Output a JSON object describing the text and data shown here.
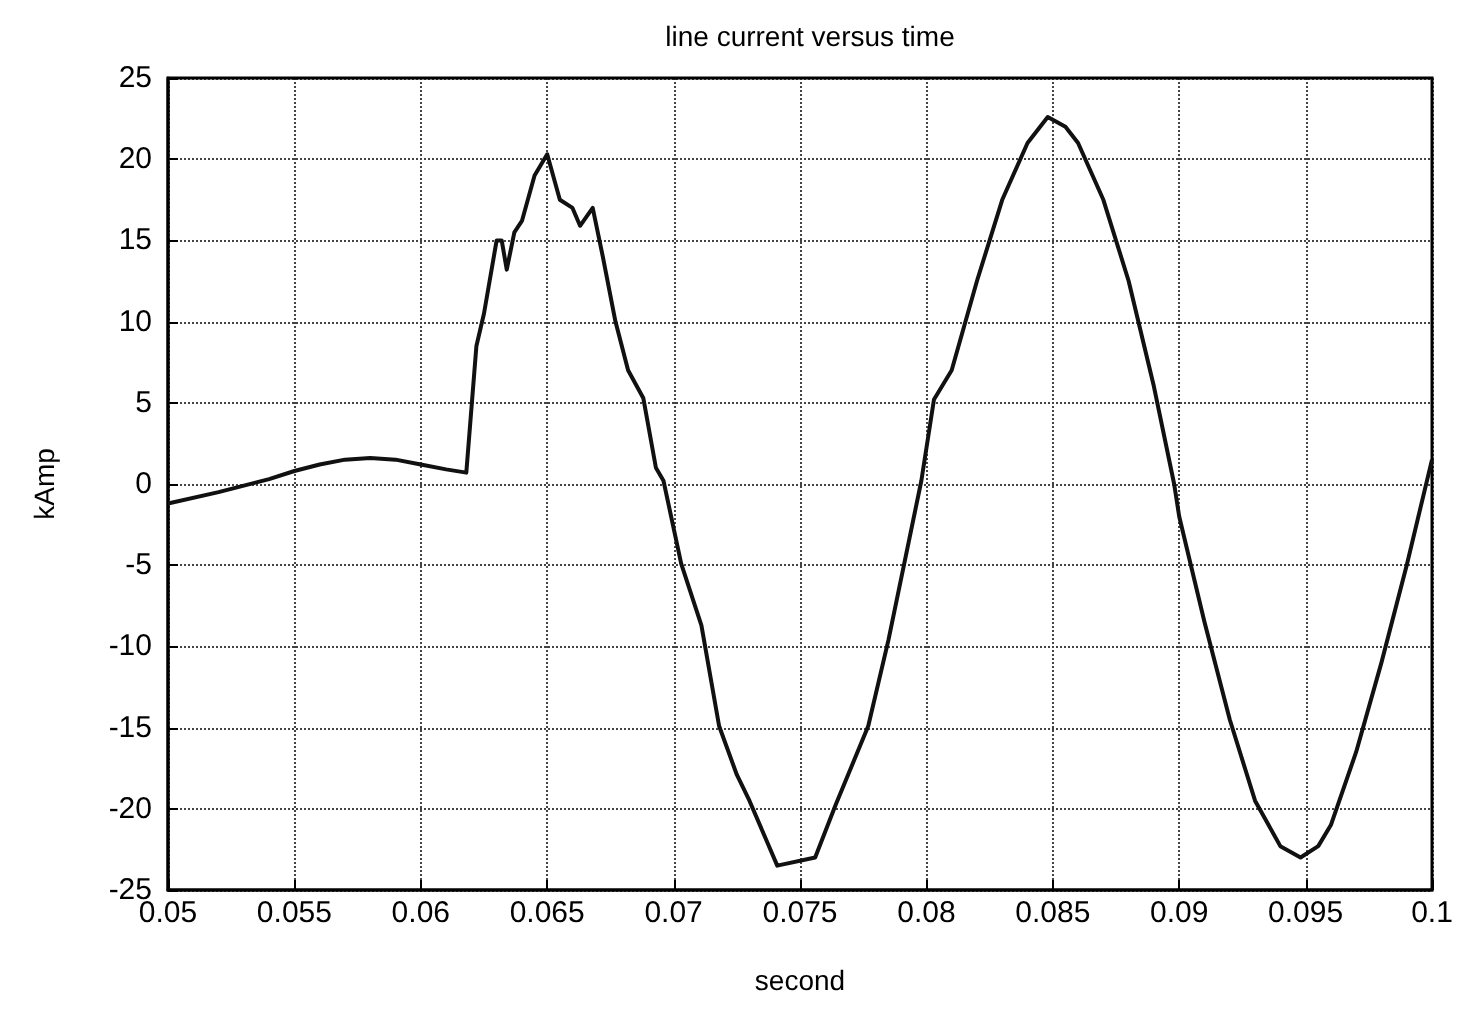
{
  "chart_data": {
    "type": "line",
    "title": "line current versus time",
    "xlabel": "second",
    "ylabel": "kAmp",
    "xlim": [
      0.05,
      0.1
    ],
    "xticks": [
      0.05,
      0.055,
      0.06,
      0.065,
      0.07,
      0.075,
      0.08,
      0.085,
      0.09,
      0.095,
      0.1
    ],
    "ylim": [
      -25,
      25
    ],
    "yticks": [
      -25,
      -20,
      -15,
      -10,
      -5,
      0,
      5,
      10,
      15,
      20,
      25
    ],
    "grid": true,
    "marker": "none",
    "line_style": "solid",
    "series": [
      {
        "color": "#111111",
        "x": [
          0.05,
          0.052,
          0.054,
          0.055,
          0.056,
          0.057,
          0.058,
          0.059,
          0.06,
          0.061,
          0.0618,
          0.0622,
          0.0625,
          0.063,
          0.0632,
          0.0634,
          0.0637,
          0.064,
          0.0645,
          0.065,
          0.0655,
          0.066,
          0.0663,
          0.0668,
          0.0672,
          0.0677,
          0.0682,
          0.0688,
          0.0693,
          0.0696,
          0.0703,
          0.0711,
          0.0718,
          0.0725,
          0.073,
          0.0741,
          0.0756,
          0.0764,
          0.0777,
          0.0785,
          0.0798,
          0.0803,
          0.081,
          0.082,
          0.083,
          0.084,
          0.0848,
          0.0855,
          0.086,
          0.087,
          0.088,
          0.089,
          0.0898,
          0.09,
          0.091,
          0.092,
          0.093,
          0.094,
          0.0948,
          0.0955,
          0.096,
          0.097,
          0.098,
          0.099,
          0.1
        ],
        "values": [
          -1.2,
          -0.5,
          0.3,
          0.8,
          1.2,
          1.5,
          1.6,
          1.5,
          1.2,
          0.9,
          0.7,
          8.5,
          10.5,
          15,
          15,
          13.2,
          15.5,
          16.2,
          19,
          20.3,
          17.5,
          17,
          15.9,
          17,
          14,
          10,
          7,
          5.3,
          1,
          0.2,
          -4.9,
          -8.7,
          -14.9,
          -17.9,
          -19.5,
          -23.5,
          -23,
          -19.8,
          -14.9,
          -9.6,
          0.2,
          5.2,
          7,
          12.5,
          17.5,
          21,
          22.6,
          22,
          21,
          17.5,
          12.5,
          6,
          0,
          -2,
          -8.5,
          -14.5,
          -19.5,
          -22.3,
          -23,
          -22.3,
          -21,
          -16.5,
          -11,
          -5,
          1.5
        ]
      }
    ]
  }
}
